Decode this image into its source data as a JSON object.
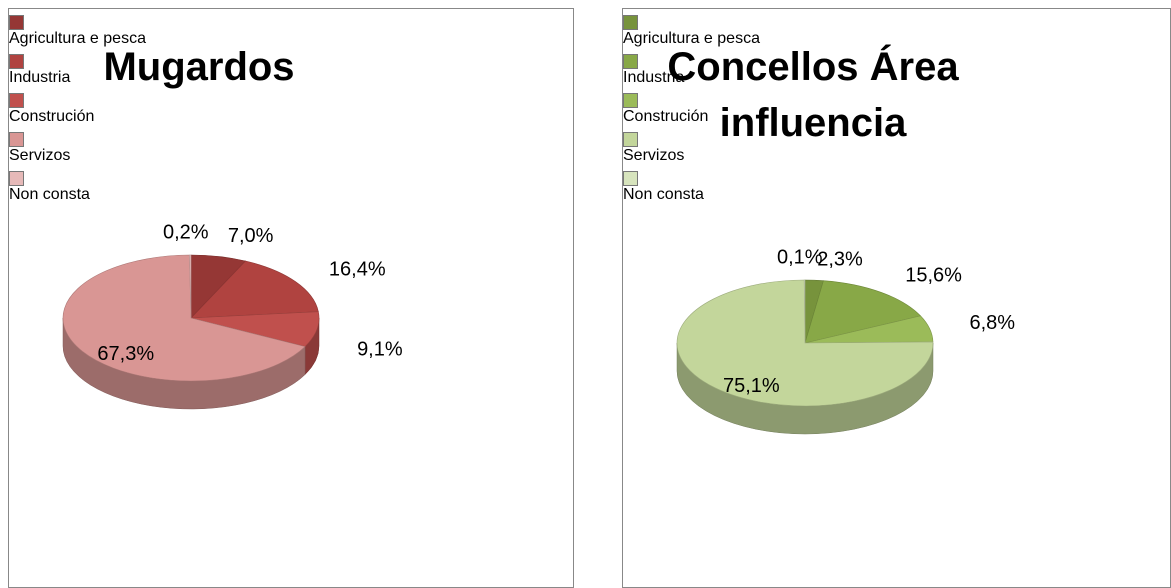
{
  "chart_data": [
    {
      "type": "pie",
      "title": "Mugardos",
      "categories": [
        "Agricultura e pesca",
        "Industria",
        "Construción",
        "Servizos",
        "Non consta"
      ],
      "values": [
        7.0,
        16.4,
        9.1,
        67.3,
        0.2
      ],
      "value_labels": [
        "7,0%",
        "16,4%",
        "9,1%",
        "67,3%",
        "0,2%"
      ],
      "colors": [
        "#953735",
        "#b04340",
        "#c0504d",
        "#d99694",
        "#e6b9b8"
      ],
      "legend": "right"
    },
    {
      "type": "pie",
      "title": "Concellos Área influencia",
      "categories": [
        "Agricultura e pesca",
        "Industria",
        "Construción",
        "Servizos",
        "Non consta"
      ],
      "values": [
        2.3,
        15.6,
        6.8,
        75.1,
        0.1
      ],
      "value_labels": [
        "2,3%",
        "15,6%",
        "6,8%",
        "75,1%",
        "0,1%"
      ],
      "colors": [
        "#77933c",
        "#88a847",
        "#9bbb59",
        "#c3d69b",
        "#d7e4bd"
      ],
      "legend": "right"
    }
  ]
}
